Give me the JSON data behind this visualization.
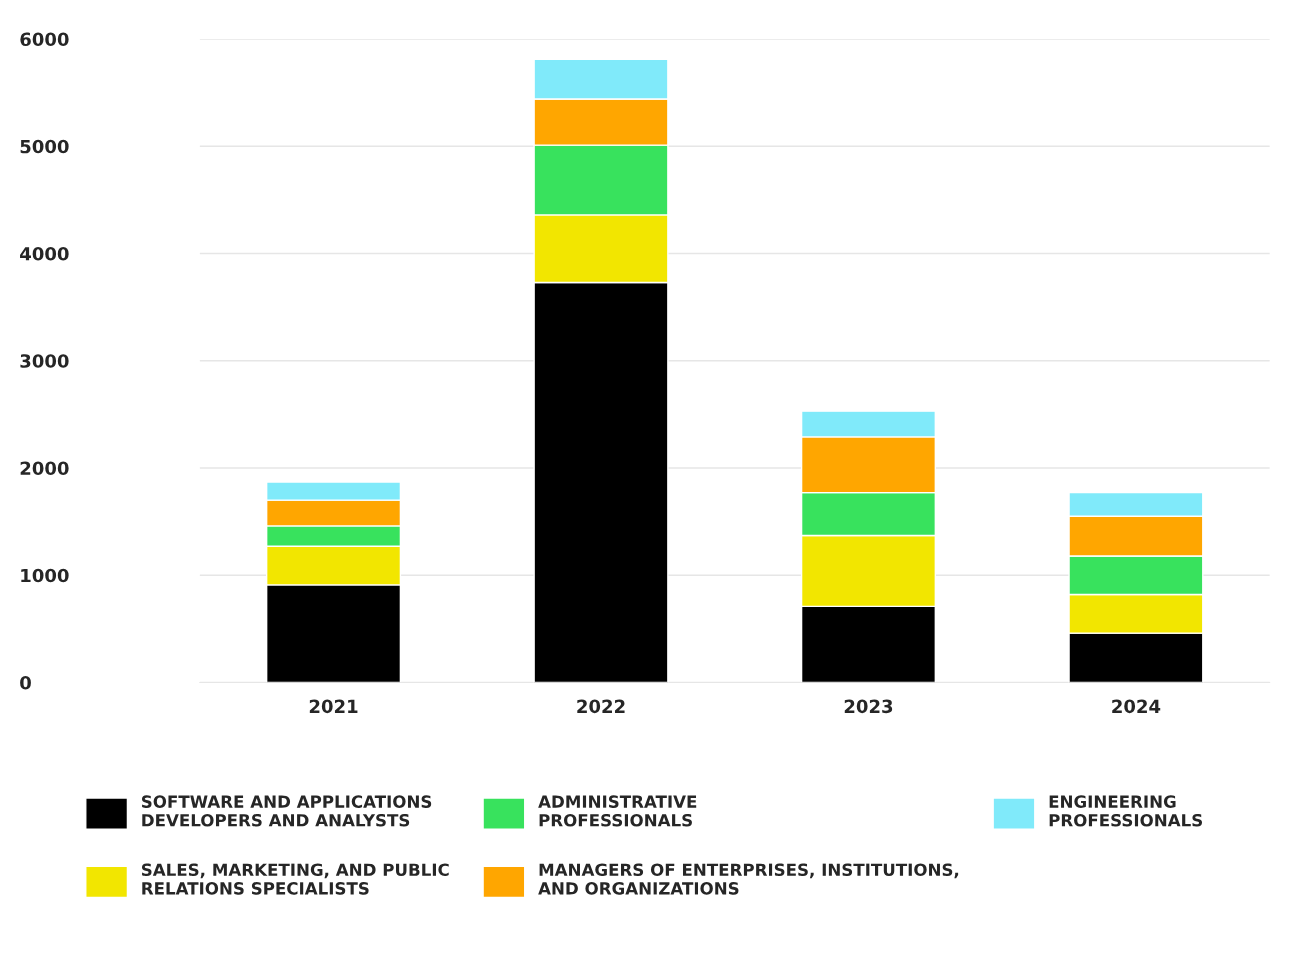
{
  "chart_data": {
    "type": "bar",
    "stacked": true,
    "categories": [
      "2021",
      "2022",
      "2023",
      "2024"
    ],
    "series": [
      {
        "name": "SOFTWARE AND APPLICATIONS DEVELOPERS AND ANALYSTS",
        "color": "#000000",
        "values": [
          910,
          3730,
          710,
          460
        ]
      },
      {
        "name": "SALES, MARKETING, AND PUBLIC RELATIONS SPECIALISTS",
        "color": "#f2e600",
        "values": [
          360,
          630,
          660,
          360
        ]
      },
      {
        "name": "ADMINISTRATIVE PROFESSIONALS",
        "color": "#38e25d",
        "values": [
          190,
          650,
          400,
          360
        ]
      },
      {
        "name": "MANAGERS OF ENTERPRISES, INSTITUTIONS, AND ORGANIZATIONS",
        "color": "#ffa600",
        "values": [
          240,
          430,
          520,
          370
        ]
      },
      {
        "name": "ENGINEERING PROFESSIONALS",
        "color": "#80eafa",
        "values": [
          170,
          370,
          240,
          220
        ]
      }
    ],
    "ylim": [
      0,
      6000
    ],
    "yticks": [
      0,
      1000,
      2000,
      3000,
      4000,
      5000,
      6000
    ],
    "grid": "y",
    "legend": "bottom"
  }
}
